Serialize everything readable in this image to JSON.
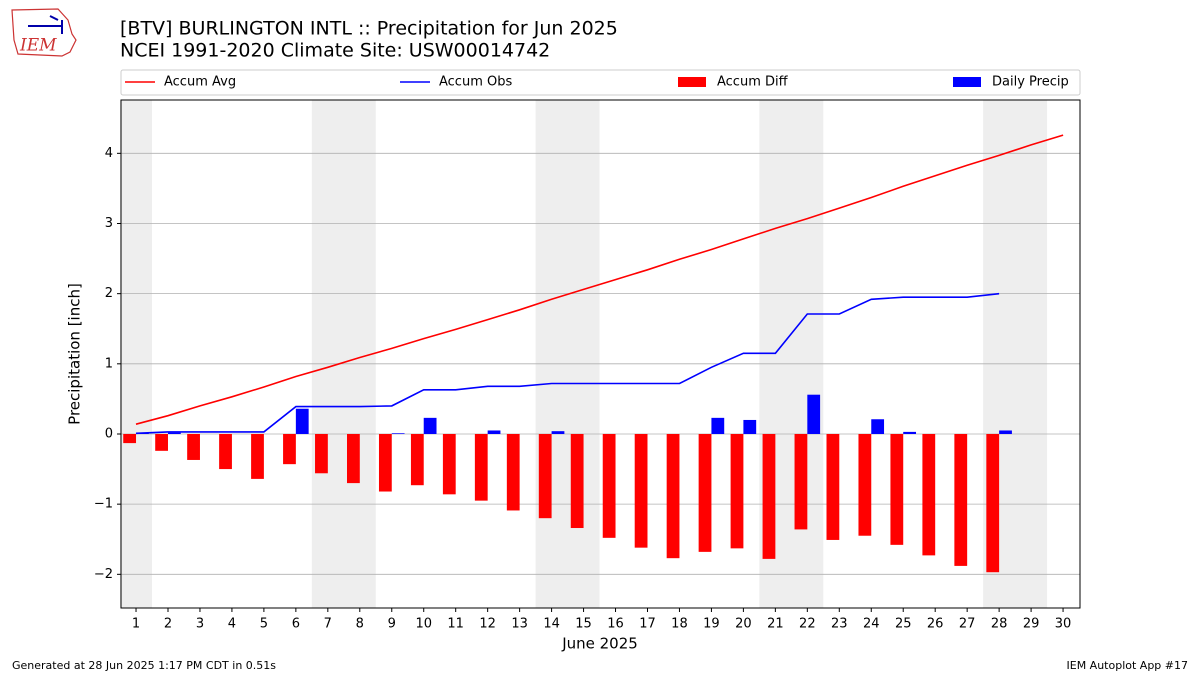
{
  "chart_data": {
    "type": "bar_line",
    "title": "[BTV] BURLINGTON INTL :: Precipitation for Jun 2025",
    "subtitle": "NCEI 1991-2020 Climate Site: USW00014742",
    "logo_text": "IEM",
    "x_label": "June 2025",
    "y_label": "Precipitation [inch]",
    "footer_left": "Generated at 28 Jun 2025 1:17 PM CDT in 0.51s",
    "footer_right": "IEM Autoplot App #17",
    "x": [
      1,
      2,
      3,
      4,
      5,
      6,
      7,
      8,
      9,
      10,
      11,
      12,
      13,
      14,
      15,
      16,
      17,
      18,
      19,
      20,
      21,
      22,
      23,
      24,
      25,
      26,
      27,
      28,
      29,
      30
    ],
    "xlim": [
      0.53,
      30.53
    ],
    "xticks": [
      1,
      2,
      3,
      4,
      5,
      6,
      7,
      8,
      9,
      10,
      11,
      12,
      13,
      14,
      15,
      16,
      17,
      18,
      19,
      20,
      21,
      22,
      23,
      24,
      25,
      26,
      27,
      28,
      29,
      30
    ],
    "ylim": [
      -2.48,
      4.76
    ],
    "yticks": [
      -2,
      -1,
      0,
      1,
      2,
      3,
      4
    ],
    "yticks_labels": [
      "−2",
      "−1",
      "0",
      "1",
      "2",
      "3",
      "4"
    ],
    "grid": true,
    "shade_spans": [
      [
        0.5,
        1.5
      ],
      [
        6.5,
        8.5
      ],
      [
        13.5,
        15.5
      ],
      [
        20.5,
        22.5
      ],
      [
        27.5,
        29.5
      ]
    ],
    "shade_color": "#eeeeee",
    "series": [
      {
        "name": "Accum Avg",
        "kind": "line",
        "color": "#ff0000",
        "values": [
          0.14,
          0.26,
          0.4,
          0.53,
          0.67,
          0.82,
          0.95,
          1.09,
          1.22,
          1.36,
          1.49,
          1.63,
          1.77,
          1.92,
          2.06,
          2.2,
          2.34,
          2.49,
          2.63,
          2.78,
          2.93,
          3.07,
          3.22,
          3.37,
          3.53,
          3.68,
          3.83,
          3.97,
          4.12,
          4.26
        ]
      },
      {
        "name": "Accum Obs",
        "kind": "line",
        "color": "#0000ff",
        "values": [
          0.01,
          0.03,
          0.03,
          0.03,
          0.03,
          0.39,
          0.39,
          0.39,
          0.4,
          0.63,
          0.63,
          0.68,
          0.68,
          0.72,
          0.72,
          0.72,
          0.72,
          0.72,
          0.95,
          1.15,
          1.15,
          1.71,
          1.71,
          1.92,
          1.95,
          1.95,
          1.95,
          2.0,
          null,
          null
        ]
      },
      {
        "name": "Accum Diff",
        "kind": "bar",
        "offset": -0.2,
        "color": "#ff0000",
        "values": [
          -0.13,
          -0.24,
          -0.37,
          -0.5,
          -0.64,
          -0.43,
          -0.56,
          -0.7,
          -0.82,
          -0.73,
          -0.86,
          -0.95,
          -1.09,
          -1.2,
          -1.34,
          -1.48,
          -1.62,
          -1.77,
          -1.68,
          -1.63,
          -1.78,
          -1.36,
          -1.51,
          -1.45,
          -1.58,
          -1.73,
          -1.88,
          -1.97,
          null,
          null
        ]
      },
      {
        "name": "Daily Precip",
        "kind": "bar",
        "offset": 0.2,
        "color": "#0000ff",
        "values": [
          0.01,
          0.02,
          0,
          0,
          0,
          0.36,
          0,
          0,
          0.01,
          0.23,
          0,
          0.05,
          0,
          0.04,
          0,
          0,
          0,
          0,
          0.23,
          0.2,
          0,
          0.56,
          0,
          0.21,
          0.03,
          0,
          0,
          0.05,
          null,
          null
        ]
      }
    ]
  }
}
